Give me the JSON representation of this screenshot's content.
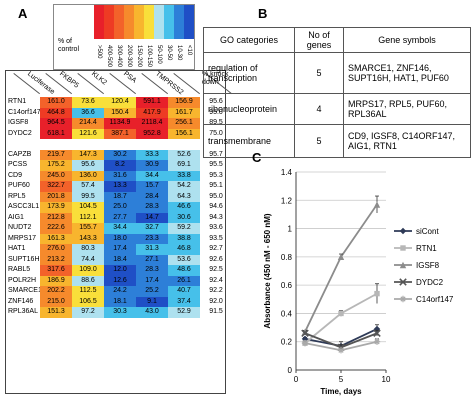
{
  "panel_a": {
    "letter": "A",
    "legend": {
      "title_line1": "% of",
      "title_line2": "control",
      "bins": [
        ">500",
        "400-500",
        "300-400",
        "200-300",
        "150-200",
        "100-150",
        "50-100",
        "30-50",
        "10-30",
        "<10"
      ],
      "colors": [
        "#e8202a",
        "#ee3b24",
        "#f3622a",
        "#f68a2c",
        "#f8b52e",
        "#f9df3a",
        "#aee1ef",
        "#46c0ea",
        "#2d7fd8",
        "#1f4fc6"
      ]
    },
    "columns": [
      "Luciferase",
      "FKBP5",
      "KLK2",
      "PSA",
      "TMPRSS2",
      "% knock down"
    ],
    "rows": [
      {
        "gene": "RTN1",
        "v": [
          "161.0",
          "73.6",
          "120.4",
          "591.1",
          "156.9",
          "95.6"
        ],
        "c": [
          "#f3622a",
          "#f9df3a",
          "#f9df3a",
          "#e8202a",
          "#f68a2c",
          ""
        ]
      },
      {
        "gene": "C14orf147",
        "v": [
          "464.8",
          "36.6",
          "150.4",
          "417.9",
          "161.7",
          "95.0"
        ],
        "c": [
          "#ee3b24",
          "#46c0ea",
          "#f8b52e",
          "#ee3b24",
          "#f8b52e",
          ""
        ]
      },
      {
        "gene": "IGSF8",
        "v": [
          "964.5",
          "214.4",
          "1134.9",
          "2118.4",
          "256.1",
          "89.5"
        ],
        "c": [
          "#e8202a",
          "#f68a2c",
          "#e8202a",
          "#e8202a",
          "#f68a2c",
          ""
        ]
      },
      {
        "gene": "DYDC2",
        "v": [
          "618.1",
          "121.6",
          "387.1",
          "952.8",
          "156.1",
          "75.0"
        ],
        "c": [
          "#e8202a",
          "#f9df3a",
          "#f3622a",
          "#e8202a",
          "#f8b52e",
          ""
        ]
      },
      {
        "gene": "",
        "v": [
          "",
          "",
          "",
          "",
          "",
          ""
        ],
        "c": [
          "",
          "",
          "",
          "",
          "",
          ""
        ]
      },
      {
        "gene": "CAPZB",
        "v": [
          "219.7",
          "147.3",
          "30.2",
          "33.3",
          "52.6",
          "95.7"
        ],
        "c": [
          "#f68a2c",
          "#f8b52e",
          "#2d7fd8",
          "#46c0ea",
          "#aee1ef",
          ""
        ]
      },
      {
        "gene": "PCSS",
        "v": [
          "175.2",
          "95.6",
          "8.2",
          "30.9",
          "69.1",
          "95.5"
        ],
        "c": [
          "#f8b52e",
          "#aee1ef",
          "#1f4fc6",
          "#2d7fd8",
          "#aee1ef",
          ""
        ]
      },
      {
        "gene": "CD9",
        "v": [
          "245.0",
          "136.0",
          "31.6",
          "34.4",
          "33.8",
          "95.3"
        ],
        "c": [
          "#f68a2c",
          "#f8b52e",
          "#2d7fd8",
          "#46c0ea",
          "#46c0ea",
          ""
        ]
      },
      {
        "gene": "PUF60",
        "v": [
          "322.7",
          "57.4",
          "13.3",
          "15.7",
          "54.2",
          "95.1"
        ],
        "c": [
          "#f3622a",
          "#aee1ef",
          "#1f4fc6",
          "#2d7fd8",
          "#aee1ef",
          ""
        ]
      },
      {
        "gene": "RPL5",
        "v": [
          "201.8",
          "99.5",
          "18.7",
          "28.4",
          "64.3",
          "95.0"
        ],
        "c": [
          "#f68a2c",
          "#aee1ef",
          "#2d7fd8",
          "#2d7fd8",
          "#aee1ef",
          ""
        ]
      },
      {
        "gene": "ASCC3L1",
        "v": [
          "173.9",
          "104.5",
          "25.0",
          "28.3",
          "46.6",
          "94.6"
        ],
        "c": [
          "#f8b52e",
          "#f9df3a",
          "#2d7fd8",
          "#2d7fd8",
          "#46c0ea",
          ""
        ]
      },
      {
        "gene": "AIG1",
        "v": [
          "212.8",
          "112.1",
          "27.7",
          "14.7",
          "30.6",
          "94.3"
        ],
        "c": [
          "#f68a2c",
          "#f9df3a",
          "#2d7fd8",
          "#1f4fc6",
          "#46c0ea",
          ""
        ]
      },
      {
        "gene": "NUDT2",
        "v": [
          "222.6",
          "155.7",
          "34.4",
          "32.7",
          "59.2",
          "93.6"
        ],
        "c": [
          "#f68a2c",
          "#f8b52e",
          "#46c0ea",
          "#46c0ea",
          "#aee1ef",
          ""
        ]
      },
      {
        "gene": "MRPS17",
        "v": [
          "161.3",
          "143.3",
          "18.0",
          "23.3",
          "38.8",
          "93.5"
        ],
        "c": [
          "#f8b52e",
          "#f8b52e",
          "#2d7fd8",
          "#2d7fd8",
          "#46c0ea",
          ""
        ]
      },
      {
        "gene": "HAT1",
        "v": [
          "276.0",
          "80.3",
          "17.4",
          "31.3",
          "46.8",
          "92.7"
        ],
        "c": [
          "#f68a2c",
          "#aee1ef",
          "#2d7fd8",
          "#46c0ea",
          "#46c0ea",
          ""
        ]
      },
      {
        "gene": "SUPT16H",
        "v": [
          "213.2",
          "74.4",
          "18.4",
          "27.1",
          "53.6",
          "92.6"
        ],
        "c": [
          "#f68a2c",
          "#aee1ef",
          "#2d7fd8",
          "#2d7fd8",
          "#aee1ef",
          ""
        ]
      },
      {
        "gene": "RABL5",
        "v": [
          "317.6",
          "109.0",
          "12.0",
          "28.3",
          "48.6",
          "92.5"
        ],
        "c": [
          "#f3622a",
          "#f9df3a",
          "#1f4fc6",
          "#2d7fd8",
          "#46c0ea",
          ""
        ]
      },
      {
        "gene": "POLR2H",
        "v": [
          "186.9",
          "88.6",
          "12.6",
          "17.4",
          "26.1",
          "92.4"
        ],
        "c": [
          "#f8b52e",
          "#aee1ef",
          "#1f4fc6",
          "#2d7fd8",
          "#2d7fd8",
          ""
        ]
      },
      {
        "gene": "SMARCE1",
        "v": [
          "202.2",
          "112.5",
          "24.2",
          "25.2",
          "40.7",
          "92.2"
        ],
        "c": [
          "#f68a2c",
          "#f9df3a",
          "#2d7fd8",
          "#2d7fd8",
          "#46c0ea",
          ""
        ]
      },
      {
        "gene": "ZNF146",
        "v": [
          "215.0",
          "106.5",
          "18.1",
          "9.1",
          "37.4",
          "92.0"
        ],
        "c": [
          "#f68a2c",
          "#f9df3a",
          "#2d7fd8",
          "#1f4fc6",
          "#46c0ea",
          ""
        ]
      },
      {
        "gene": "RPL36AL",
        "v": [
          "151.3",
          "97.2",
          "30.3",
          "43.0",
          "52.9",
          "91.5"
        ],
        "c": [
          "#f8b52e",
          "#aee1ef",
          "#46c0ea",
          "#46c0ea",
          "#aee1ef",
          ""
        ]
      }
    ]
  },
  "panel_b": {
    "letter": "B",
    "headers": [
      "GO categories",
      "No of genes",
      "Gene symbols"
    ],
    "rows": [
      {
        "category": "regulation of transcription",
        "count": "5",
        "symbols": "SMARCE1, ZNF146, SUPT16H, HAT1, PUF60"
      },
      {
        "category": "ribonucleoprotein",
        "count": "4",
        "symbols": "MRPS17, RPL5, PUF60, RPL36AL"
      },
      {
        "category": "transmembrane",
        "count": "5",
        "symbols": "CD9, IGSF8, C14ORF147, AIG1, RTN1"
      }
    ]
  },
  "panel_c": {
    "letter": "C"
  },
  "chart_data": {
    "type": "line",
    "title": "",
    "xlabel": "Time, days",
    "ylabel": "Absorbance (450 nM - 650 nM)",
    "xlim": [
      0,
      10
    ],
    "ylim": [
      0,
      1.4
    ],
    "xticks": [
      0,
      5,
      10
    ],
    "yticks": [
      0,
      0.2,
      0.4,
      0.6,
      0.8,
      1,
      1.2,
      1.4
    ],
    "x": [
      1,
      5,
      9
    ],
    "legend_position": "right",
    "series": [
      {
        "name": "siCont",
        "values": [
          0.22,
          0.17,
          0.29
        ],
        "errors": [
          0.01,
          0.03,
          0.03
        ],
        "color": "#2e3a57",
        "marker": "diamond"
      },
      {
        "name": "RTN1",
        "values": [
          0.19,
          0.4,
          0.54
        ],
        "errors": [
          0.01,
          0.02,
          0.07
        ],
        "color": "#b7b7b7",
        "marker": "square"
      },
      {
        "name": "IGSF8",
        "values": [
          0.27,
          0.8,
          1.17
        ],
        "errors": [
          0.01,
          0.02,
          0.06
        ],
        "color": "#8c8c8c",
        "marker": "triangle"
      },
      {
        "name": "DYDC2",
        "values": [
          0.26,
          0.16,
          0.26
        ],
        "errors": [
          0.01,
          0.02,
          0.02
        ],
        "color": "#555555",
        "marker": "x"
      },
      {
        "name": "C14orf147",
        "values": [
          0.19,
          0.14,
          0.2
        ],
        "errors": [
          0.01,
          0.01,
          0.02
        ],
        "color": "#a9a9a9",
        "marker": "star"
      }
    ]
  }
}
